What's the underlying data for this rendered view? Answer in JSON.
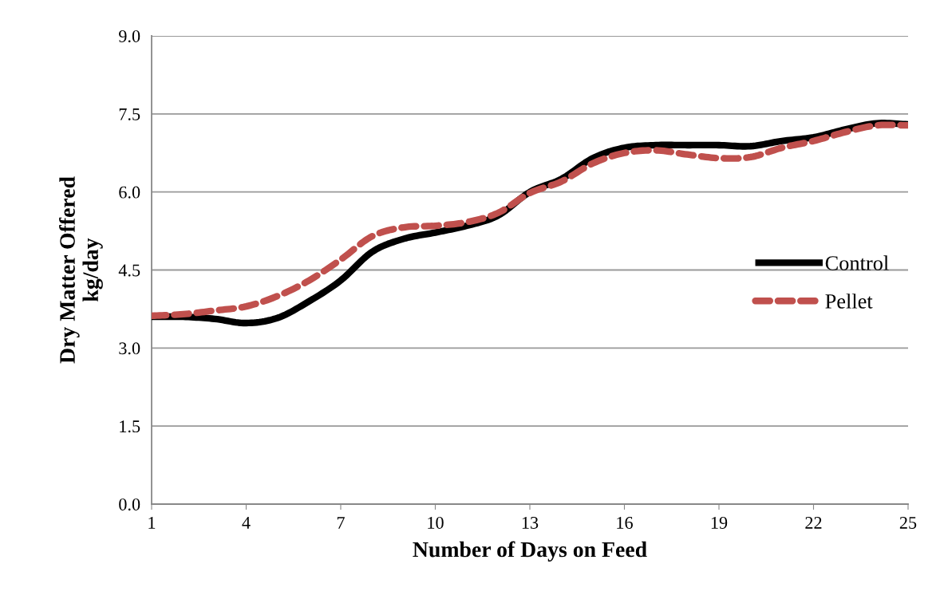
{
  "chart_data": {
    "type": "line",
    "xlabel": "Number of Days on Feed",
    "ylabel": "Dry Matter Offered\nkg/day",
    "x": [
      1,
      2,
      3,
      4,
      5,
      6,
      7,
      8,
      9,
      10,
      11,
      12,
      13,
      14,
      15,
      16,
      17,
      18,
      19,
      20,
      21,
      22,
      23,
      24,
      25
    ],
    "series": [
      {
        "name": "Control",
        "color": "#000000",
        "line_style": "solid",
        "values": [
          3.6,
          3.6,
          3.56,
          3.48,
          3.58,
          3.9,
          4.3,
          4.85,
          5.1,
          5.22,
          5.35,
          5.55,
          6.0,
          6.25,
          6.65,
          6.85,
          6.9,
          6.9,
          6.9,
          6.88,
          6.98,
          7.05,
          7.2,
          7.32,
          7.3
        ]
      },
      {
        "name": "Pellet",
        "color": "#c0504d",
        "line_style": "dashed",
        "values": [
          3.62,
          3.65,
          3.72,
          3.8,
          4.0,
          4.3,
          4.7,
          5.15,
          5.32,
          5.35,
          5.42,
          5.6,
          5.98,
          6.2,
          6.55,
          6.75,
          6.8,
          6.72,
          6.65,
          6.67,
          6.85,
          6.98,
          7.15,
          7.28,
          7.28
        ]
      }
    ],
    "xlim": [
      1,
      25
    ],
    "xticks": [
      1,
      4,
      7,
      10,
      13,
      16,
      19,
      22,
      25
    ],
    "ylim": [
      0,
      9
    ],
    "yticks": [
      {
        "value": 0,
        "label": "0.0"
      },
      {
        "value": 1.5,
        "label": "1.5"
      },
      {
        "value": 3,
        "label": "3.0"
      },
      {
        "value": 4.5,
        "label": "4.5"
      },
      {
        "value": 6,
        "label": "6.0"
      },
      {
        "value": 7.5,
        "label": "7.5"
      },
      {
        "value": 9,
        "label": "9.0"
      }
    ],
    "grid": "y",
    "legend": "right",
    "marker": "none"
  }
}
